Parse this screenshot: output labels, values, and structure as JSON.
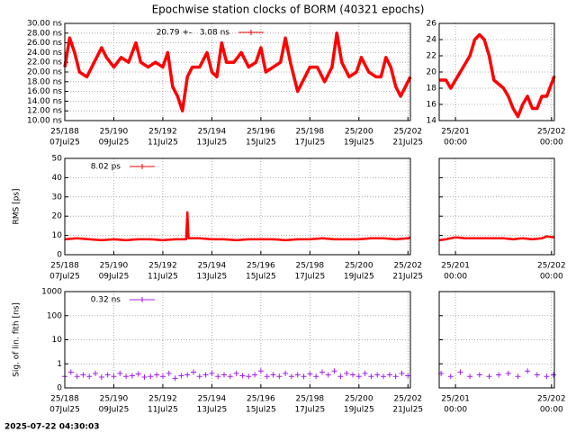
{
  "title": "Epochwise station clocks of BORM (40321 epochs)",
  "timestamp": "2025-07-22 04:30:03",
  "chart_data": [
    {
      "type": "line",
      "xlim": [
        188,
        202.1
      ],
      "ylim": [
        10,
        30
      ],
      "yticks": [
        {
          "value": 10,
          "label": "10.00 ns"
        },
        {
          "value": 12,
          "label": "12.00 ns"
        },
        {
          "value": 14,
          "label": "14.00 ns"
        },
        {
          "value": 16,
          "label": "16.00 ns"
        },
        {
          "value": 18,
          "label": "18.00 ns"
        },
        {
          "value": 20,
          "label": "20.00 ns"
        },
        {
          "value": 22,
          "label": "22.00 ns"
        },
        {
          "value": 24,
          "label": "24.00 ns"
        },
        {
          "value": 26,
          "label": "26.00 ns"
        },
        {
          "value": 28,
          "label": "28.00 ns"
        },
        {
          "value": 30,
          "label": "30.00 ns"
        }
      ],
      "xticks": [
        {
          "value": 188,
          "label": "25/188",
          "sublabel": "07Jul25"
        },
        {
          "value": 190,
          "label": "25/190",
          "sublabel": "09Jul25"
        },
        {
          "value": 192,
          "label": "25/192",
          "sublabel": "11Jul25"
        },
        {
          "value": 194,
          "label": "25/194",
          "sublabel": "13Jul25"
        },
        {
          "value": 196,
          "label": "25/196",
          "sublabel": "15Jul25"
        },
        {
          "value": 198,
          "label": "25/198",
          "sublabel": "17Jul25"
        },
        {
          "value": 200,
          "label": "25/200",
          "sublabel": "19Jul25"
        },
        {
          "value": 202,
          "label": "25/202",
          "sublabel": "21Jul25"
        }
      ],
      "grid": true,
      "series": [
        {
          "name": "20.79 +-   3.08 ns",
          "color": "#ff0000",
          "x": [
            188.0,
            188.2,
            188.4,
            188.6,
            188.9,
            189.2,
            189.5,
            189.7,
            190.0,
            190.3,
            190.6,
            190.9,
            191.1,
            191.4,
            191.7,
            192.0,
            192.2,
            192.4,
            192.6,
            192.8,
            193.0,
            193.2,
            193.5,
            193.8,
            194.0,
            194.2,
            194.4,
            194.6,
            194.9,
            195.2,
            195.5,
            195.8,
            196.0,
            196.2,
            196.5,
            196.8,
            197.0,
            197.2,
            197.5,
            197.8,
            198.0,
            198.3,
            198.6,
            198.9,
            199.1,
            199.3,
            199.6,
            199.9,
            200.1,
            200.4,
            200.7,
            200.9,
            201.1,
            201.3,
            201.5,
            201.7,
            201.9,
            202.1
          ],
          "values": [
            21,
            27,
            24,
            20,
            19,
            22,
            25,
            23,
            21,
            23,
            22,
            26,
            22,
            21,
            22,
            21,
            24,
            17,
            15,
            12,
            19,
            21,
            21,
            24,
            20,
            19,
            26,
            22,
            22,
            24,
            21,
            22,
            25,
            20,
            21,
            22,
            27,
            22,
            16,
            19,
            21,
            21,
            18,
            21,
            28,
            22,
            19,
            20,
            23,
            20,
            19,
            19,
            23,
            21,
            17,
            15,
            17,
            19
          ]
        }
      ]
    },
    {
      "type": "line",
      "xlim": [
        200.83,
        202.03
      ],
      "ylim": [
        14,
        26
      ],
      "yticks": [
        14,
        16,
        18,
        20,
        22,
        24,
        26
      ],
      "xticks": [
        {
          "value": 201,
          "label": "25/201",
          "sublabel": "00:00"
        },
        {
          "value": 202,
          "label": "25/202",
          "sublabel": "00:00"
        }
      ],
      "grid": true,
      "series": [
        {
          "color": "#ff0000",
          "x": [
            200.83,
            200.9,
            200.95,
            201.0,
            201.1,
            201.15,
            201.2,
            201.25,
            201.3,
            201.35,
            201.4,
            201.5,
            201.55,
            201.6,
            201.65,
            201.7,
            201.75,
            201.8,
            201.85,
            201.9,
            201.95,
            202.03
          ],
          "values": [
            19,
            19,
            18,
            19,
            21,
            22,
            24,
            24.6,
            24,
            22,
            19,
            18,
            17,
            15.5,
            14.5,
            16,
            17,
            15.5,
            15.5,
            17,
            17,
            19.5
          ]
        }
      ]
    },
    {
      "type": "line",
      "ylabel": "RMS [ps]",
      "xlim": [
        188,
        202.1
      ],
      "ylim": [
        0,
        50
      ],
      "yticks": [
        0,
        10,
        20,
        30,
        40,
        50
      ],
      "xticks": [
        {
          "value": 188,
          "label": "25/188",
          "sublabel": "07Jul25"
        },
        {
          "value": 190,
          "label": "25/190",
          "sublabel": "09Jul25"
        },
        {
          "value": 192,
          "label": "25/192",
          "sublabel": "11Jul25"
        },
        {
          "value": 194,
          "label": "25/194",
          "sublabel": "13Jul25"
        },
        {
          "value": 196,
          "label": "25/196",
          "sublabel": "15Jul25"
        },
        {
          "value": 198,
          "label": "25/198",
          "sublabel": "17Jul25"
        },
        {
          "value": 200,
          "label": "25/200",
          "sublabel": "19Jul25"
        },
        {
          "value": 202,
          "label": "25/202",
          "sublabel": "21Jul25"
        }
      ],
      "grid": true,
      "series": [
        {
          "name": "8.02 ps",
          "color": "#ff0000",
          "x": [
            188.0,
            188.5,
            189.0,
            189.5,
            190.0,
            190.5,
            191.0,
            191.5,
            192.0,
            192.5,
            192.95,
            193.0,
            193.05,
            193.5,
            194.0,
            194.5,
            195.0,
            195.5,
            196.0,
            196.5,
            197.0,
            197.5,
            198.0,
            198.5,
            199.0,
            199.5,
            200.0,
            200.5,
            201.0,
            201.5,
            202.0,
            202.1
          ],
          "values": [
            8,
            8.5,
            8,
            7.5,
            8,
            7.5,
            8,
            8,
            7.5,
            8,
            8,
            22,
            8.5,
            8.5,
            8,
            8,
            7.5,
            8,
            8,
            8,
            7.5,
            8,
            8,
            8.5,
            8,
            8,
            8,
            8.5,
            8.5,
            8,
            8.5,
            9
          ]
        }
      ]
    },
    {
      "type": "line",
      "xlim": [
        200.83,
        202.03
      ],
      "ylim": [
        0,
        50
      ],
      "yticks": [
        0,
        10,
        20,
        30,
        40,
        50
      ],
      "ytick_labels": false,
      "xticks": [
        {
          "value": 201,
          "label": "25/201",
          "sublabel": "00:00"
        },
        {
          "value": 202,
          "label": "25/202",
          "sublabel": "00:00"
        }
      ],
      "grid": true,
      "series": [
        {
          "color": "#ff0000",
          "x": [
            200.83,
            200.9,
            201.0,
            201.1,
            201.2,
            201.3,
            201.4,
            201.5,
            201.6,
            201.7,
            201.8,
            201.9,
            201.95,
            202.03
          ],
          "values": [
            7.5,
            8,
            9,
            8.5,
            8.5,
            8.5,
            8.5,
            8.5,
            8,
            8.5,
            8,
            8.5,
            9.5,
            9
          ]
        }
      ]
    },
    {
      "type": "scatter",
      "ylabel": "Sig. of lin. fith [ns]",
      "xlim": [
        188,
        202.1
      ],
      "ylim": [
        0.1,
        1000
      ],
      "log_y": true,
      "yticks": [
        {
          "value": 0.1,
          "label": "0"
        },
        1,
        10,
        100,
        1000
      ],
      "xticks": [
        {
          "value": 188,
          "label": "25/188",
          "sublabel": "07Jul25"
        },
        {
          "value": 190,
          "label": "25/190",
          "sublabel": "09Jul25"
        },
        {
          "value": 192,
          "label": "25/192",
          "sublabel": "11Jul25"
        },
        {
          "value": 194,
          "label": "25/194",
          "sublabel": "13Jul25"
        },
        {
          "value": 196,
          "label": "25/196",
          "sublabel": "15Jul25"
        },
        {
          "value": 198,
          "label": "25/198",
          "sublabel": "17Jul25"
        },
        {
          "value": 200,
          "label": "25/200",
          "sublabel": "19Jul25"
        },
        {
          "value": 202,
          "label": "25/202",
          "sublabel": "21Jul25"
        }
      ],
      "grid": true,
      "series": [
        {
          "name": "0.32 ns",
          "color": "#a020f0",
          "x": [
            188.0,
            188.25,
            188.5,
            188.75,
            189.0,
            189.25,
            189.5,
            189.75,
            190.0,
            190.25,
            190.5,
            190.75,
            191.0,
            191.25,
            191.5,
            191.75,
            192.0,
            192.25,
            192.5,
            192.75,
            193.0,
            193.25,
            193.5,
            193.75,
            194.0,
            194.25,
            194.5,
            194.75,
            195.0,
            195.25,
            195.5,
            195.75,
            196.0,
            196.25,
            196.5,
            196.75,
            197.0,
            197.25,
            197.5,
            197.75,
            198.0,
            198.25,
            198.5,
            198.75,
            199.0,
            199.25,
            199.5,
            199.75,
            200.0,
            200.25,
            200.5,
            200.75,
            201.0,
            201.25,
            201.5,
            201.75,
            202.0
          ],
          "values": [
            0.3,
            0.45,
            0.3,
            0.35,
            0.3,
            0.4,
            0.28,
            0.35,
            0.3,
            0.4,
            0.3,
            0.32,
            0.38,
            0.28,
            0.3,
            0.35,
            0.3,
            0.4,
            0.25,
            0.32,
            0.35,
            0.45,
            0.3,
            0.35,
            0.4,
            0.3,
            0.35,
            0.3,
            0.4,
            0.32,
            0.3,
            0.35,
            0.5,
            0.3,
            0.35,
            0.3,
            0.4,
            0.3,
            0.35,
            0.3,
            0.38,
            0.3,
            0.45,
            0.35,
            0.5,
            0.3,
            0.4,
            0.35,
            0.3,
            0.4,
            0.3,
            0.35,
            0.3,
            0.35,
            0.3,
            0.4,
            0.32
          ]
        }
      ]
    },
    {
      "type": "scatter",
      "xlim": [
        200.83,
        202.03
      ],
      "ylim": [
        0.1,
        1000
      ],
      "log_y": true,
      "yticks": [
        0.1,
        1,
        10,
        100,
        1000
      ],
      "ytick_labels": false,
      "xticks": [
        {
          "value": 201,
          "label": "25/201",
          "sublabel": "00:00"
        },
        {
          "value": 202,
          "label": "25/202",
          "sublabel": "00:00"
        }
      ],
      "grid": true,
      "series": [
        {
          "color": "#a020f0",
          "x": [
            200.85,
            200.95,
            201.05,
            201.15,
            201.25,
            201.35,
            201.45,
            201.55,
            201.65,
            201.75,
            201.85,
            201.95,
            202.02
          ],
          "values": [
            0.4,
            0.3,
            0.45,
            0.3,
            0.35,
            0.3,
            0.35,
            0.4,
            0.3,
            0.5,
            0.35,
            0.3,
            0.35
          ]
        }
      ]
    }
  ]
}
